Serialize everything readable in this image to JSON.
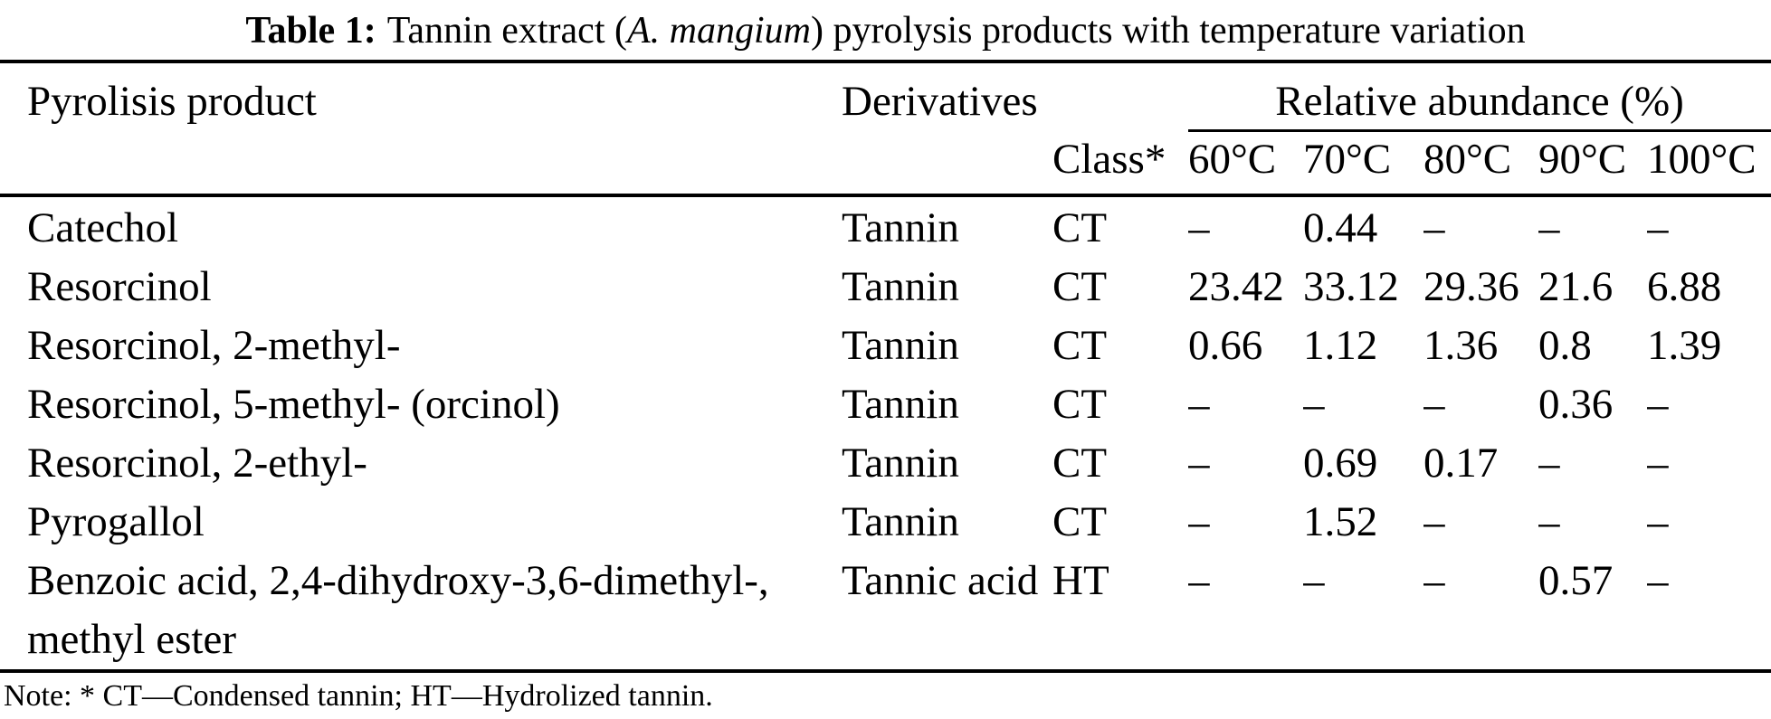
{
  "caption": {
    "label": "Table 1:",
    "text_pre": "Tannin extract (",
    "species": "A. mangium",
    "text_post": ") pyrolysis products with temperature variation"
  },
  "headers": {
    "product": "Pyrolisis product",
    "derivatives": "Derivatives",
    "relative_abundance": "Relative abundance (%)",
    "class": "Class*",
    "temps": [
      "60°C",
      "70°C",
      "80°C",
      "90°C",
      "100°C"
    ]
  },
  "rows": [
    {
      "product": "Catechol",
      "derivative": "Tannin",
      "class": "CT",
      "t60": "–",
      "t70": "0.44",
      "t80": "–",
      "t90": "–",
      "t100": "–"
    },
    {
      "product": "Resorcinol",
      "derivative": "Tannin",
      "class": "CT",
      "t60": "23.42",
      "t70": "33.12",
      "t80": "29.36",
      "t90": "21.6",
      "t100": "6.88"
    },
    {
      "product": "Resorcinol, 2-methyl-",
      "derivative": "Tannin",
      "class": "CT",
      "t60": "0.66",
      "t70": "1.12",
      "t80": "1.36",
      "t90": "0.8",
      "t100": "1.39"
    },
    {
      "product": "Resorcinol, 5-methyl- (orcinol)",
      "derivative": "Tannin",
      "class": "CT",
      "t60": "–",
      "t70": "–",
      "t80": "–",
      "t90": "0.36",
      "t100": "–"
    },
    {
      "product": "Resorcinol, 2-ethyl-",
      "derivative": "Tannin",
      "class": "CT",
      "t60": "–",
      "t70": "0.69",
      "t80": "0.17",
      "t90": "–",
      "t100": "–"
    },
    {
      "product": "Pyrogallol",
      "derivative": "Tannin",
      "class": "CT",
      "t60": "–",
      "t70": "1.52",
      "t80": "–",
      "t90": "–",
      "t100": "–"
    },
    {
      "product": "Benzoic acid, 2,4-dihydroxy-3,6-dimethyl-,\nmethyl ester",
      "derivative": "Tannic acid",
      "class": "HT",
      "t60": "–",
      "t70": "–",
      "t80": "–",
      "t90": "0.57",
      "t100": "–"
    }
  ],
  "note": "Note: * CT—Condensed tannin; HT—Hydrolized tannin.",
  "colors": {
    "text": "#000000",
    "background": "#ffffff",
    "rule": "#000000"
  }
}
